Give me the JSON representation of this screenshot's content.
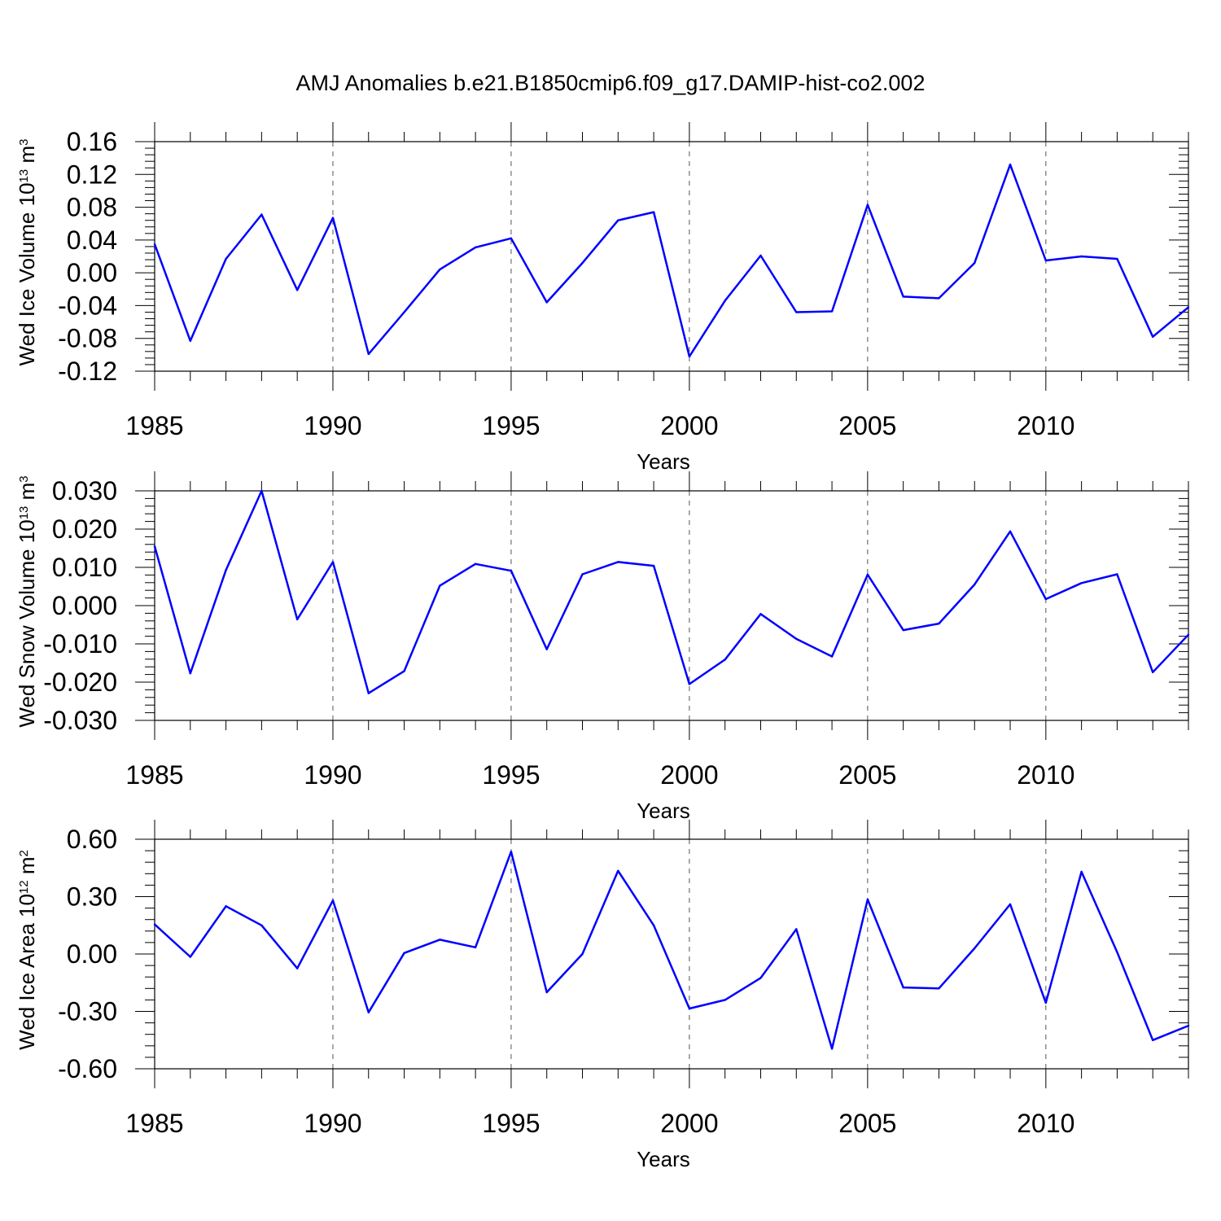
{
  "title": "AMJ Anomalies b.e21.B1850cmip6.f09_g17.DAMIP-hist-co2.002",
  "line_color": "#0000ff",
  "chart_data": [
    {
      "type": "line",
      "ylabel_main": "Wed Ice Volume 10",
      "ylabel_exp": "13",
      "ylabel_unit": "m",
      "ylabel_unit_exp": "3",
      "xlabel": "Years",
      "xlim": [
        1985,
        2014
      ],
      "ylim": [
        -0.12,
        0.16
      ],
      "xticks": [
        1985,
        1990,
        1995,
        2000,
        2005,
        2010
      ],
      "yticks": [
        "-0.12",
        "-0.08",
        "-0.04",
        "0.00",
        "0.04",
        "0.08",
        "0.12",
        "0.16"
      ],
      "grid_x": [
        1990,
        1995,
        2000,
        2005,
        2010
      ],
      "x": [
        1985,
        1986,
        1987,
        1988,
        1989,
        1990,
        1991,
        1992,
        1993,
        1994,
        1995,
        1996,
        1997,
        1998,
        1999,
        2000,
        2001,
        2002,
        2003,
        2004,
        2005,
        2006,
        2007,
        2008,
        2009,
        2010,
        2011,
        2012,
        2013,
        2014
      ],
      "y": [
        0.035,
        -0.083,
        0.017,
        0.071,
        -0.021,
        0.067,
        -0.099,
        -0.048,
        0.004,
        0.031,
        0.042,
        -0.036,
        0.012,
        0.064,
        0.074,
        -0.102,
        -0.034,
        0.021,
        -0.048,
        -0.047,
        0.083,
        -0.029,
        -0.031,
        0.012,
        0.132,
        0.015,
        0.02,
        0.017,
        -0.078,
        -0.042
      ]
    },
    {
      "type": "line",
      "ylabel_main": "Wed Snow Volume 10",
      "ylabel_exp": "13",
      "ylabel_unit": "m",
      "ylabel_unit_exp": "3",
      "xlabel": "Years",
      "xlim": [
        1985,
        2014
      ],
      "ylim": [
        -0.03,
        0.03
      ],
      "xticks": [
        1985,
        1990,
        1995,
        2000,
        2005,
        2010
      ],
      "yticks": [
        "-0.030",
        "-0.020",
        "-0.010",
        "0.000",
        "0.010",
        "0.020",
        "0.030"
      ],
      "grid_x": [
        1990,
        1995,
        2000,
        2005,
        2010
      ],
      "x": [
        1985,
        1986,
        1987,
        1988,
        1989,
        1990,
        1991,
        1992,
        1993,
        1994,
        1995,
        1996,
        1997,
        1998,
        1999,
        2000,
        2001,
        2002,
        2003,
        2004,
        2005,
        2006,
        2007,
        2008,
        2009,
        2010,
        2011,
        2012,
        2013,
        2014
      ],
      "y": [
        0.0155,
        -0.0177,
        0.0093,
        0.03,
        -0.0036,
        0.0114,
        -0.0229,
        -0.0171,
        0.0052,
        0.0109,
        0.0091,
        -0.0114,
        0.0082,
        0.0114,
        0.0104,
        -0.0205,
        -0.0141,
        -0.0022,
        -0.0087,
        -0.0133,
        0.0081,
        -0.0064,
        -0.0047,
        0.0055,
        0.0194,
        0.0017,
        0.0059,
        0.0082,
        -0.0174,
        -0.0076
      ]
    },
    {
      "type": "line",
      "ylabel_main": "Wed Ice Area 10",
      "ylabel_exp": "12",
      "ylabel_unit": "m",
      "ylabel_unit_exp": "2",
      "xlabel": "Years",
      "xlim": [
        1985,
        2014
      ],
      "ylim": [
        -0.6,
        0.6
      ],
      "xticks": [
        1985,
        1990,
        1995,
        2000,
        2005,
        2010
      ],
      "yticks": [
        "-0.60",
        "-0.30",
        "0.00",
        "0.30",
        "0.60"
      ],
      "grid_x": [
        1990,
        1995,
        2000,
        2005,
        2010
      ],
      "x": [
        1985,
        1986,
        1987,
        1988,
        1989,
        1990,
        1991,
        1992,
        1993,
        1994,
        1995,
        1996,
        1997,
        1998,
        1999,
        2000,
        2001,
        2002,
        2003,
        2004,
        2005,
        2006,
        2007,
        2008,
        2009,
        2010,
        2011,
        2012,
        2013,
        2014
      ],
      "y": [
        0.155,
        -0.015,
        0.25,
        0.15,
        -0.075,
        0.28,
        -0.305,
        0.005,
        0.075,
        0.035,
        0.535,
        -0.2,
        0.0,
        0.435,
        0.15,
        -0.285,
        -0.24,
        -0.125,
        0.13,
        -0.495,
        0.285,
        -0.175,
        -0.18,
        0.03,
        0.26,
        -0.255,
        0.43,
        0.01,
        -0.45,
        -0.375
      ]
    }
  ]
}
